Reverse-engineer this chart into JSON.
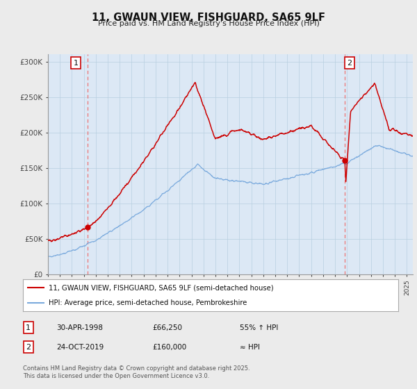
{
  "title": "11, GWAUN VIEW, FISHGUARD, SA65 9LF",
  "subtitle": "Price paid vs. HM Land Registry's House Price Index (HPI)",
  "ylabel_ticks": [
    "£0",
    "£50K",
    "£100K",
    "£150K",
    "£200K",
    "£250K",
    "£300K"
  ],
  "ytick_values": [
    0,
    50000,
    100000,
    150000,
    200000,
    250000,
    300000
  ],
  "ylim": [
    0,
    310000
  ],
  "xlim_start": 1995.0,
  "xlim_end": 2025.5,
  "red_line_color": "#cc0000",
  "blue_line_color": "#7aaadd",
  "vline_color": "#ee6666",
  "point1_x": 1998.33,
  "point1_y": 66250,
  "point1_label": "1",
  "point2_x": 2019.81,
  "point2_y": 160000,
  "point2_label": "2",
  "legend_red": "11, GWAUN VIEW, FISHGUARD, SA65 9LF (semi-detached house)",
  "legend_blue": "HPI: Average price, semi-detached house, Pembrokeshire",
  "table_row1": [
    "1",
    "30-APR-1998",
    "£66,250",
    "55% ↑ HPI"
  ],
  "table_row2": [
    "2",
    "24-OCT-2019",
    "£160,000",
    "≈ HPI"
  ],
  "footnote": "Contains HM Land Registry data © Crown copyright and database right 2025.\nThis data is licensed under the Open Government Licence v3.0.",
  "bg_color": "#ebebeb",
  "plot_bg_color": "#dce8f5",
  "grid_color": "#b8cfe0"
}
